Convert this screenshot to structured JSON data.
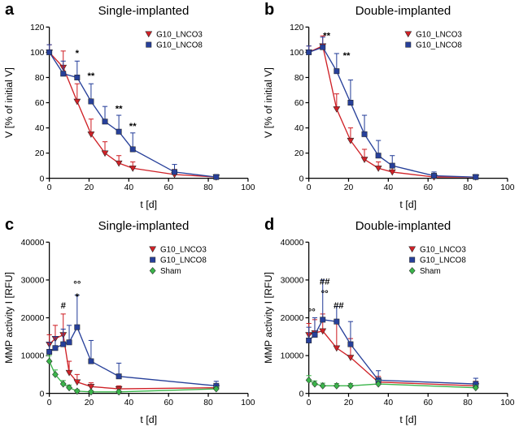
{
  "figure": {
    "panel_letters": [
      "a",
      "b",
      "c",
      "d"
    ],
    "colors": {
      "lnco3": "#cf2127",
      "lnco8": "#27409a",
      "sham": "#3ab54a"
    }
  },
  "chart_data": [
    {
      "type": "line",
      "panel": "a",
      "title": "Single-implanted",
      "xlabel": "t [d]",
      "ylabel": "V [% of initial V]",
      "xlim": [
        0,
        100
      ],
      "ylim": [
        0,
        120
      ],
      "xticks": [
        0,
        20,
        40,
        60,
        80,
        100
      ],
      "yticks": [
        0,
        20,
        40,
        60,
        80,
        100,
        120
      ],
      "grid": false,
      "legend_position": "top-right-inside",
      "legend_x": 0.5,
      "series": [
        {
          "name": "G10_LNCO3",
          "color": "#cf2127",
          "marker": "triangle-down",
          "x": [
            0,
            7,
            14,
            21,
            28,
            35,
            42,
            63,
            84
          ],
          "y": [
            100,
            88,
            61,
            35,
            20,
            12,
            8,
            3,
            1
          ],
          "err": [
            6,
            13,
            14,
            12,
            9,
            6,
            5,
            4,
            2
          ]
        },
        {
          "name": "G10_LNCO8",
          "color": "#27409a",
          "marker": "square",
          "x": [
            0,
            7,
            14,
            21,
            28,
            35,
            42,
            63,
            84
          ],
          "y": [
            100,
            83,
            80,
            61,
            45,
            37,
            23,
            5,
            1
          ],
          "err": [
            6,
            10,
            13,
            14,
            12,
            13,
            13,
            6,
            2
          ]
        }
      ],
      "annotations": [
        {
          "text": "*",
          "x": 14,
          "y": 97
        },
        {
          "text": "**",
          "x": 21,
          "y": 79
        },
        {
          "text": "**",
          "x": 35,
          "y": 53
        },
        {
          "text": "**",
          "x": 42,
          "y": 39
        }
      ]
    },
    {
      "type": "line",
      "panel": "b",
      "title": "Double-implanted",
      "xlabel": "t [d]",
      "ylabel": "V [% of initial V]",
      "xlim": [
        0,
        100
      ],
      "ylim": [
        0,
        120
      ],
      "xticks": [
        0,
        20,
        40,
        60,
        80,
        100
      ],
      "yticks": [
        0,
        20,
        40,
        60,
        80,
        100,
        120
      ],
      "grid": false,
      "legend_position": "top-right-inside",
      "legend_x": 0.5,
      "series": [
        {
          "name": "G10_LNCO3",
          "color": "#cf2127",
          "marker": "triangle-down",
          "x": [
            0,
            7,
            14,
            21,
            28,
            35,
            42,
            63,
            84
          ],
          "y": [
            100,
            105,
            55,
            30,
            15,
            8,
            5,
            1,
            1
          ],
          "err": [
            5,
            8,
            12,
            10,
            8,
            5,
            4,
            2,
            2
          ]
        },
        {
          "name": "G10_LNCO8",
          "color": "#27409a",
          "marker": "square",
          "x": [
            0,
            7,
            14,
            21,
            28,
            35,
            42,
            63,
            84
          ],
          "y": [
            100,
            104,
            85,
            60,
            35,
            18,
            10,
            2,
            1
          ],
          "err": [
            5,
            8,
            14,
            18,
            15,
            12,
            8,
            3,
            2
          ]
        }
      ],
      "annotations": [
        {
          "text": "**",
          "x": 9,
          "y": 111
        },
        {
          "text": "**",
          "x": 19,
          "y": 95
        }
      ]
    },
    {
      "type": "line",
      "panel": "c",
      "title": "Single-implanted",
      "xlabel": "t [d]",
      "ylabel": "MMP activity I [RFU]",
      "xlim": [
        0,
        100
      ],
      "ylim": [
        0,
        40000
      ],
      "xticks": [
        0,
        20,
        40,
        60,
        80,
        100
      ],
      "yticks": [
        0,
        10000,
        20000,
        30000,
        40000
      ],
      "grid": false,
      "legend_position": "top-right-inside",
      "legend_x": 0.52,
      "series": [
        {
          "name": "G10_LNCO3",
          "color": "#cf2127",
          "marker": "triangle-down",
          "x": [
            0,
            3,
            7,
            10,
            14,
            21,
            35,
            84
          ],
          "y": [
            13000,
            14500,
            15500,
            5500,
            3000,
            1800,
            1200,
            1500
          ],
          "err": [
            2500,
            3500,
            5500,
            3000,
            2000,
            1000,
            800,
            800
          ]
        },
        {
          "name": "G10_LNCO8",
          "color": "#27409a",
          "marker": "square",
          "x": [
            0,
            3,
            7,
            10,
            14,
            21,
            35,
            84
          ],
          "y": [
            11000,
            12000,
            13000,
            13500,
            17500,
            8500,
            4500,
            2000
          ],
          "err": [
            2500,
            3000,
            4000,
            4500,
            8500,
            5500,
            3500,
            1200
          ]
        },
        {
          "name": "Sham",
          "color": "#3ab54a",
          "marker": "diamond",
          "x": [
            0,
            3,
            7,
            10,
            14,
            21,
            35,
            84
          ],
          "y": [
            8500,
            5000,
            2500,
            1500,
            600,
            400,
            400,
            1200
          ],
          "err": [
            1500,
            1200,
            900,
            700,
            400,
            300,
            300,
            500
          ]
        }
      ],
      "annotations": [
        {
          "text": "#",
          "x": 7,
          "y": 22500
        },
        {
          "text": "°°",
          "x": 14,
          "y": 28000
        },
        {
          "text": "*",
          "x": 14,
          "y": 24800
        }
      ]
    },
    {
      "type": "line",
      "panel": "d",
      "title": "Double-implanted",
      "xlabel": "t [d]",
      "ylabel": "MMP activity I [RFU]",
      "xlim": [
        0,
        100
      ],
      "ylim": [
        0,
        40000
      ],
      "xticks": [
        0,
        20,
        40,
        60,
        80,
        100
      ],
      "yticks": [
        0,
        10000,
        20000,
        30000,
        40000
      ],
      "grid": false,
      "legend_position": "top-right-inside",
      "legend_x": 0.52,
      "series": [
        {
          "name": "G10_LNCO3",
          "color": "#cf2127",
          "marker": "triangle-down",
          "x": [
            0,
            3,
            7,
            14,
            21,
            35,
            84
          ],
          "y": [
            15500,
            16000,
            16500,
            12000,
            9500,
            3000,
            2000
          ],
          "err": [
            3000,
            3500,
            4500,
            6500,
            5000,
            1500,
            1200
          ]
        },
        {
          "name": "G10_LNCO8",
          "color": "#27409a",
          "marker": "square",
          "x": [
            0,
            3,
            7,
            14,
            21,
            35,
            84
          ],
          "y": [
            14000,
            15500,
            19500,
            19000,
            13000,
            3500,
            2500
          ],
          "err": [
            3500,
            4500,
            10500,
            4000,
            6000,
            2500,
            1500
          ]
        },
        {
          "name": "Sham",
          "color": "#3ab54a",
          "marker": "diamond",
          "x": [
            0,
            3,
            7,
            14,
            21,
            35,
            84
          ],
          "y": [
            3500,
            2500,
            2000,
            2000,
            2000,
            2500,
            1500
          ],
          "err": [
            1200,
            800,
            700,
            600,
            600,
            900,
            600
          ]
        }
      ],
      "annotations": [
        {
          "text": "°°",
          "x": 1.5,
          "y": 20800
        },
        {
          "text": "##",
          "x": 8,
          "y": 28800
        },
        {
          "text": "°°",
          "x": 8,
          "y": 25600
        },
        {
          "text": "##",
          "x": 15,
          "y": 22500
        }
      ]
    }
  ]
}
